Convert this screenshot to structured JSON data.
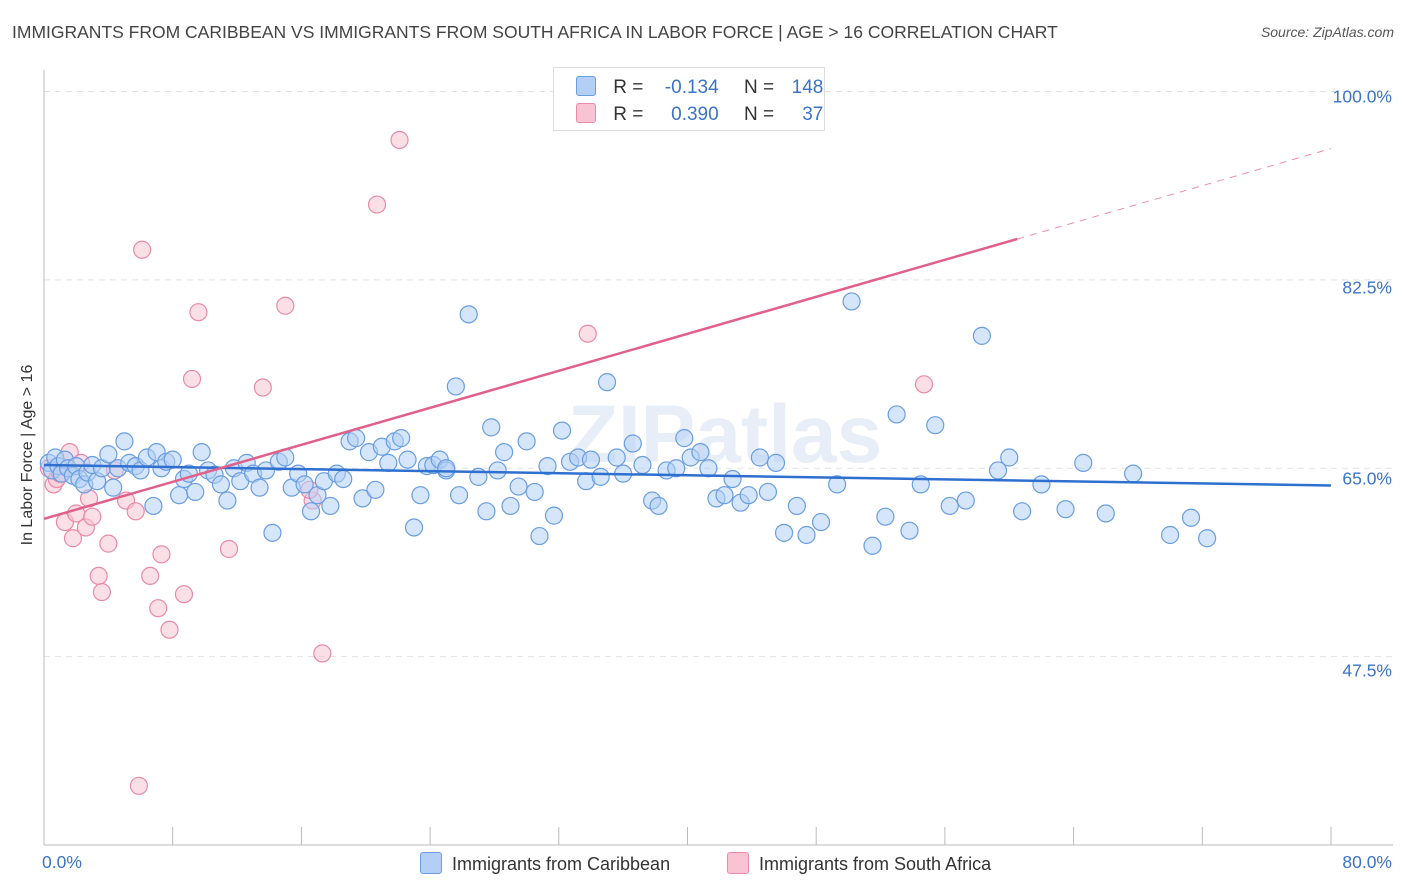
{
  "header": {
    "title": "IMMIGRANTS FROM CARIBBEAN VS IMMIGRANTS FROM SOUTH AFRICA IN LABOR FORCE | AGE > 16 CORRELATION CHART",
    "source": "Source: ZipAtlas.com"
  },
  "legend": {
    "rows": [
      {
        "r_label": "R =",
        "r_value": "-0.134",
        "n_label": "N =",
        "n_value": "148"
      },
      {
        "r_label": "R =",
        "r_value": "0.390",
        "n_label": "N =",
        "n_value": "37"
      }
    ]
  },
  "watermark": {
    "text": "ZIPatlas"
  },
  "colors": {
    "blue_fill": "#b3cff5",
    "blue_stroke": "#6a9ee0",
    "blue_line": "#2f6fcf",
    "pink_fill": "#f8c4d3",
    "pink_stroke": "#e98aa8",
    "pink_line": "#e0608a",
    "tick_text": "#3b73c9",
    "grid": "#e2e2e2"
  },
  "chart_data": {
    "type": "scatter",
    "title": "IMMIGRANTS FROM CARIBBEAN VS IMMIGRANTS FROM SOUTH AFRICA IN LABOR FORCE | AGE > 16 CORRELATION CHART",
    "xlabel": "",
    "ylabel": "In Labor Force | Age > 16",
    "xlim": [
      0,
      80
    ],
    "ylim": [
      30,
      102
    ],
    "x_tick_labels": [
      "0.0%",
      "80.0%"
    ],
    "y_ticks": [
      47.5,
      65.0,
      82.5,
      100.0
    ],
    "y_tick_labels": [
      "47.5%",
      "65.0%",
      "82.5%",
      "100.0%"
    ],
    "grid": true,
    "legend_position": "top-center",
    "series": [
      {
        "name": "Immigrants from Caribbean",
        "color": "#6a9ee0",
        "R": -0.134,
        "N": 148,
        "trend": {
          "x": [
            0,
            80
          ],
          "y": [
            65.3,
            63.4
          ]
        },
        "points": [
          [
            0.3,
            65.5
          ],
          [
            0.5,
            64.8
          ],
          [
            0.7,
            66.0
          ],
          [
            0.9,
            65.2
          ],
          [
            1.1,
            64.5
          ],
          [
            1.3,
            65.8
          ],
          [
            1.5,
            65.0
          ],
          [
            1.8,
            64.3
          ],
          [
            2.0,
            65.2
          ],
          [
            2.2,
            64.0
          ],
          [
            2.5,
            63.5
          ],
          [
            2.7,
            64.6
          ],
          [
            3.0,
            65.3
          ],
          [
            3.3,
            63.8
          ],
          [
            3.6,
            65.0
          ],
          [
            4.0,
            66.3
          ],
          [
            4.3,
            63.2
          ],
          [
            4.6,
            65.0
          ],
          [
            5.0,
            67.5
          ],
          [
            5.3,
            65.5
          ],
          [
            5.7,
            65.2
          ],
          [
            6.0,
            64.8
          ],
          [
            6.4,
            66.0
          ],
          [
            6.8,
            61.5
          ],
          [
            7.0,
            66.5
          ],
          [
            7.3,
            65.0
          ],
          [
            7.6,
            65.6
          ],
          [
            8.0,
            65.8
          ],
          [
            8.4,
            62.5
          ],
          [
            8.7,
            64.0
          ],
          [
            9.0,
            64.5
          ],
          [
            9.4,
            62.8
          ],
          [
            9.8,
            66.5
          ],
          [
            10.2,
            64.8
          ],
          [
            10.6,
            64.4
          ],
          [
            11.0,
            63.5
          ],
          [
            11.4,
            62.0
          ],
          [
            11.8,
            65.0
          ],
          [
            12.2,
            63.8
          ],
          [
            12.6,
            65.5
          ],
          [
            13.0,
            64.5
          ],
          [
            13.4,
            63.2
          ],
          [
            13.8,
            64.8
          ],
          [
            14.2,
            59.0
          ],
          [
            14.6,
            65.6
          ],
          [
            15.0,
            66.0
          ],
          [
            15.4,
            63.2
          ],
          [
            15.8,
            64.5
          ],
          [
            16.2,
            63.5
          ],
          [
            16.6,
            61.0
          ],
          [
            17.0,
            62.5
          ],
          [
            17.4,
            63.8
          ],
          [
            17.8,
            61.5
          ],
          [
            18.2,
            64.5
          ],
          [
            18.6,
            64.0
          ],
          [
            19.0,
            67.5
          ],
          [
            19.4,
            67.8
          ],
          [
            19.8,
            62.2
          ],
          [
            20.2,
            66.5
          ],
          [
            20.6,
            63.0
          ],
          [
            21.0,
            67.0
          ],
          [
            21.4,
            65.5
          ],
          [
            21.8,
            67.5
          ],
          [
            22.2,
            67.8
          ],
          [
            22.6,
            65.8
          ],
          [
            23.0,
            59.5
          ],
          [
            23.4,
            62.5
          ],
          [
            23.8,
            65.2
          ],
          [
            24.2,
            65.3
          ],
          [
            24.6,
            65.8
          ],
          [
            25.0,
            64.8
          ],
          [
            25.6,
            72.6
          ],
          [
            25.8,
            62.5
          ],
          [
            26.4,
            79.3
          ],
          [
            27.0,
            64.2
          ],
          [
            27.5,
            61.0
          ],
          [
            27.8,
            68.8
          ],
          [
            28.2,
            64.8
          ],
          [
            28.6,
            66.5
          ],
          [
            29.0,
            61.5
          ],
          [
            29.5,
            63.3
          ],
          [
            30.0,
            67.5
          ],
          [
            30.5,
            62.8
          ],
          [
            30.8,
            58.7
          ],
          [
            31.3,
            65.2
          ],
          [
            31.7,
            60.6
          ],
          [
            32.2,
            68.5
          ],
          [
            32.7,
            65.6
          ],
          [
            33.2,
            66.0
          ],
          [
            33.7,
            63.8
          ],
          [
            34.0,
            65.8
          ],
          [
            34.6,
            64.2
          ],
          [
            35.0,
            73.0
          ],
          [
            35.6,
            66.0
          ],
          [
            36.0,
            64.5
          ],
          [
            36.6,
            67.3
          ],
          [
            37.2,
            65.3
          ],
          [
            37.8,
            62.0
          ],
          [
            38.2,
            61.5
          ],
          [
            38.7,
            64.8
          ],
          [
            39.3,
            65.0
          ],
          [
            39.8,
            67.8
          ],
          [
            40.2,
            66.0
          ],
          [
            40.8,
            66.5
          ],
          [
            41.3,
            65.0
          ],
          [
            41.8,
            62.2
          ],
          [
            42.3,
            62.5
          ],
          [
            42.8,
            64.0
          ],
          [
            43.3,
            61.8
          ],
          [
            43.8,
            62.5
          ],
          [
            44.5,
            66.0
          ],
          [
            45.0,
            62.8
          ],
          [
            45.5,
            65.5
          ],
          [
            46.0,
            59.0
          ],
          [
            46.8,
            61.5
          ],
          [
            47.4,
            58.8
          ],
          [
            48.3,
            60.0
          ],
          [
            49.3,
            63.5
          ],
          [
            50.2,
            80.5
          ],
          [
            51.5,
            57.8
          ],
          [
            52.3,
            60.5
          ],
          [
            53.0,
            70.0
          ],
          [
            53.8,
            59.2
          ],
          [
            54.5,
            63.5
          ],
          [
            55.4,
            69.0
          ],
          [
            56.3,
            61.5
          ],
          [
            57.3,
            62.0
          ],
          [
            58.3,
            77.3
          ],
          [
            59.3,
            64.8
          ],
          [
            60.0,
            66.0
          ],
          [
            60.8,
            61.0
          ],
          [
            62.0,
            63.5
          ],
          [
            63.5,
            61.2
          ],
          [
            64.6,
            65.5
          ],
          [
            66.0,
            60.8
          ],
          [
            67.7,
            64.5
          ],
          [
            70.0,
            58.8
          ],
          [
            71.3,
            60.4
          ],
          [
            72.3,
            58.5
          ],
          [
            25.0,
            65.0
          ]
        ]
      },
      {
        "name": "Immigrants from South Africa",
        "color": "#e98aa8",
        "R": 0.39,
        "N": 37,
        "trend": {
          "x": [
            0,
            60.5
          ],
          "y": [
            60.3,
            86.3
          ]
        },
        "trend_dashed": {
          "x": [
            60.5,
            80
          ],
          "y": [
            86.3,
            94.7
          ]
        },
        "points": [
          [
            0.3,
            65.0
          ],
          [
            0.6,
            63.5
          ],
          [
            0.8,
            64.0
          ],
          [
            1.0,
            64.5
          ],
          [
            1.3,
            60.0
          ],
          [
            1.6,
            66.5
          ],
          [
            1.8,
            58.5
          ],
          [
            2.0,
            60.8
          ],
          [
            2.3,
            65.5
          ],
          [
            2.6,
            59.5
          ],
          [
            2.8,
            62.2
          ],
          [
            3.0,
            60.5
          ],
          [
            3.4,
            55.0
          ],
          [
            3.6,
            53.5
          ],
          [
            4.0,
            58.0
          ],
          [
            4.4,
            64.8
          ],
          [
            5.1,
            62.0
          ],
          [
            5.7,
            61.0
          ],
          [
            6.1,
            85.3
          ],
          [
            6.6,
            55.0
          ],
          [
            7.1,
            52.0
          ],
          [
            7.3,
            57.0
          ],
          [
            7.8,
            50.0
          ],
          [
            8.7,
            53.3
          ],
          [
            9.6,
            79.5
          ],
          [
            9.2,
            73.3
          ],
          [
            11.5,
            57.5
          ],
          [
            13.6,
            72.5
          ],
          [
            15.0,
            80.1
          ],
          [
            16.7,
            62.0
          ],
          [
            17.3,
            47.8
          ],
          [
            20.7,
            89.5
          ],
          [
            22.1,
            95.5
          ],
          [
            33.8,
            77.5
          ],
          [
            54.7,
            72.8
          ],
          [
            5.9,
            35.5
          ],
          [
            16.5,
            63.0
          ]
        ]
      }
    ]
  },
  "bottom_legend": {
    "items": [
      {
        "label": "Immigrants from Caribbean"
      },
      {
        "label": "Immigrants from South Africa"
      }
    ]
  }
}
